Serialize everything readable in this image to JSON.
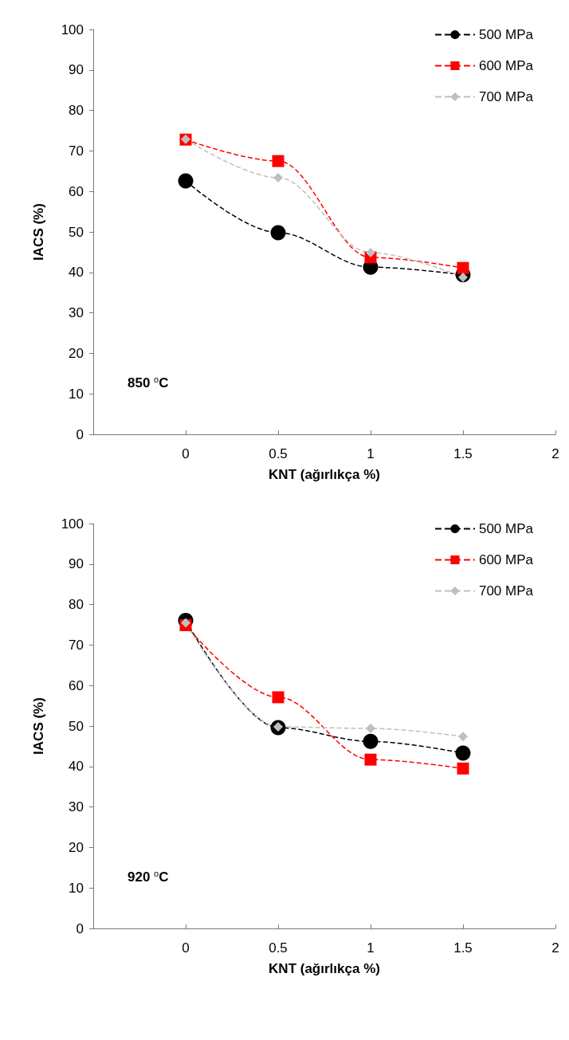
{
  "chart_data": [
    {
      "type": "line",
      "xlabel": "KNT (ağırlıkça %)",
      "ylabel": "IACS (%)",
      "annotations": [
        "850 $^{o}$C"
      ],
      "x": [
        0,
        0.5,
        1,
        1.5
      ],
      "xlim": [
        -0.5,
        2
      ],
      "xticks": [
        0,
        0.5,
        1,
        1.5,
        2
      ],
      "ylim": [
        0,
        100
      ],
      "yticks": [
        0,
        10,
        20,
        30,
        40,
        50,
        60,
        70,
        80,
        90,
        100
      ],
      "grid": false,
      "legend": "top right",
      "line_style": "dashed",
      "series": [
        {
          "name": "500 MPa",
          "color": "#000000",
          "marker": "circle",
          "values": [
            62.6,
            49.8,
            41.3,
            39.4
          ]
        },
        {
          "name": "600 MPa",
          "color": "#ff0000",
          "marker": "square",
          "values": [
            72.8,
            67.5,
            43.7,
            41.1
          ]
        },
        {
          "name": "700 MPa",
          "color": "#bfbfbf",
          "marker": "diamond",
          "values": [
            72.9,
            63.4,
            44.9,
            38.8
          ]
        }
      ]
    },
    {
      "type": "line",
      "xlabel": "KNT (ağırlıkça %)",
      "ylabel": "IACS (%)",
      "annotations": [
        "920 $^{o}$C"
      ],
      "x": [
        0,
        0.5,
        1,
        1.5
      ],
      "xlim": [
        -0.5,
        2
      ],
      "xticks": [
        0,
        0.5,
        1,
        1.5,
        2
      ],
      "ylim": [
        0,
        100
      ],
      "yticks": [
        0,
        10,
        20,
        30,
        40,
        50,
        60,
        70,
        80,
        90,
        100
      ],
      "grid": false,
      "legend": "top right",
      "line_style": "dashed",
      "series": [
        {
          "name": "500 MPa",
          "color": "#000000",
          "marker": "circle",
          "values": [
            76.1,
            49.6,
            46.2,
            43.3
          ]
        },
        {
          "name": "600 MPa",
          "color": "#ff0000",
          "marker": "square",
          "values": [
            74.9,
            57.1,
            41.7,
            39.5
          ]
        },
        {
          "name": "700 MPa",
          "color": "#bfbfbf",
          "marker": "diamond",
          "values": [
            75.5,
            49.8,
            49.4,
            47.4
          ]
        }
      ]
    }
  ]
}
